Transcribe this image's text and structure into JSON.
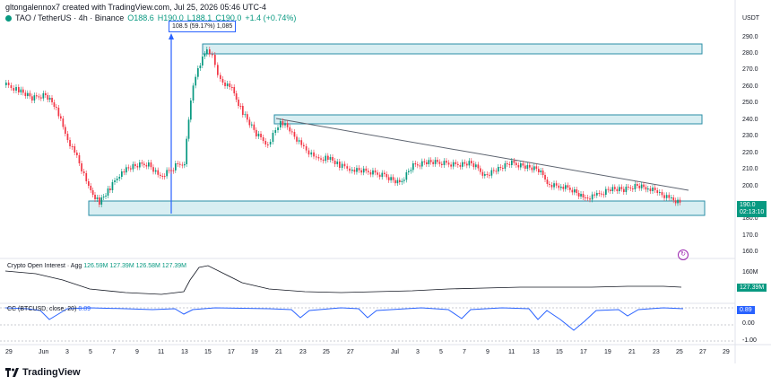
{
  "header": {
    "creator_line": "gltongalennox7 created with TradingView.com, Jul 25, 2026 05:46 UTC-4"
  },
  "symbol": {
    "name": "TAO / TetherUS · 4h · Binance",
    "open": "O188.6",
    "high": "H190.0",
    "low": "L188.1",
    "close": "C190.0",
    "change": "+1.4 (+0.74%)"
  },
  "measure": {
    "text": "108.5 (59.17%) 1,085"
  },
  "price_axis": {
    "currency": "USDT",
    "ticks": [
      "290.0",
      "280.0",
      "270.0",
      "260.0",
      "250.0",
      "240.0",
      "230.0",
      "220.0",
      "210.0",
      "200.0",
      "180.0",
      "170.0",
      "160.0"
    ],
    "current_price": "190.0",
    "countdown": "02:13:10"
  },
  "open_interest": {
    "label": "Crypto Open Interest · Agg",
    "values": "126.59M 127.39M 126.58M 127.39M",
    "ticks": [
      "160M"
    ],
    "current": "127.39M"
  },
  "cc": {
    "label": "CC (BTCUSD, close, 20)",
    "value": "0.89",
    "ticks": [
      "0.00",
      "-1.00"
    ],
    "current": "0.89"
  },
  "time_axis": {
    "ticks": [
      "29",
      "Jun",
      "3",
      "5",
      "7",
      "9",
      "11",
      "13",
      "15",
      "17",
      "19",
      "21",
      "23",
      "25",
      "27",
      "Jul",
      "3",
      "5",
      "7",
      "9",
      "11",
      "13",
      "15",
      "17",
      "19",
      "21",
      "23",
      "25",
      "27",
      "29"
    ]
  },
  "footer": {
    "brand": "TradingView"
  },
  "colors": {
    "up": "#089981",
    "down": "#f23645",
    "box_fill": "#d8eef2",
    "box_border": "#2a8ea6",
    "trendline": "#5d6470",
    "measure": "#2962ff",
    "cc_line": "#2962ff"
  }
}
